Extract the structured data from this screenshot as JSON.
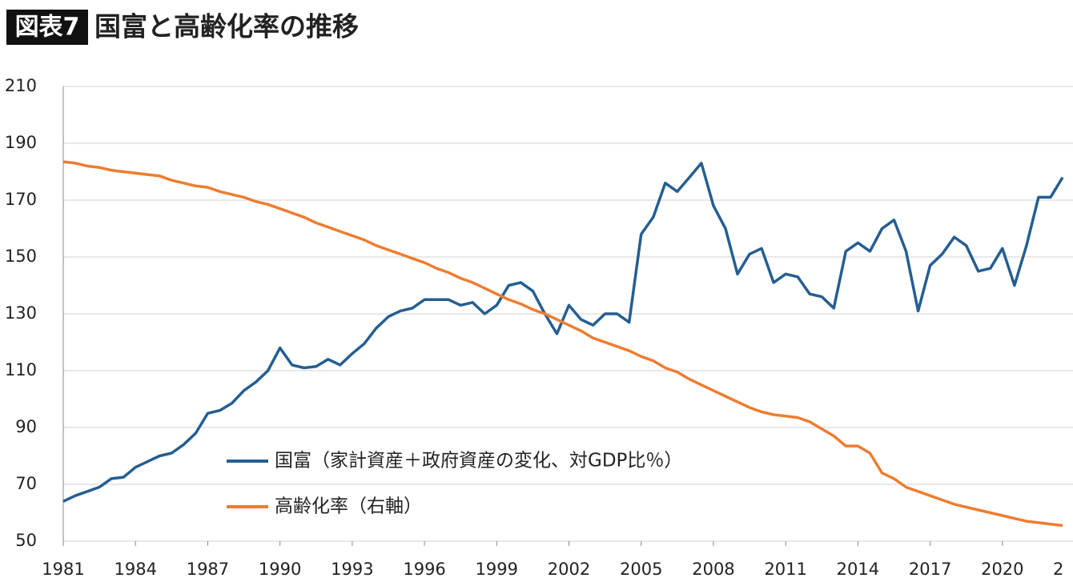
{
  "chart_data": {
    "type": "line",
    "figure_label": "図表7",
    "title": "国富と高齢化率の推移",
    "x": [
      1981,
      1981.5,
      1982,
      1982.5,
      1983,
      1983.5,
      1984,
      1984.5,
      1985,
      1985.5,
      1986,
      1986.5,
      1987,
      1987.5,
      1988,
      1988.5,
      1989,
      1989.5,
      1990,
      1990.5,
      1991,
      1991.5,
      1992,
      1992.5,
      1993,
      1993.5,
      1994,
      1994.5,
      1995,
      1995.5,
      1996,
      1996.5,
      1997,
      1997.5,
      1998,
      1998.5,
      1999,
      1999.5,
      2000,
      2000.5,
      2001,
      2001.5,
      2002,
      2002.5,
      2003,
      2003.5,
      2004,
      2004.5,
      2005,
      2005.5,
      2006,
      2006.5,
      2007,
      2007.5,
      2008,
      2008.5,
      2009,
      2009.5,
      2010,
      2010.5,
      2011,
      2011.5,
      2012,
      2012.5,
      2013,
      2013.5,
      2014,
      2014.5,
      2015,
      2015.5,
      2016,
      2016.5,
      2017,
      2017.5,
      2018,
      2018.5,
      2019,
      2019.5,
      2020,
      2020.5,
      2021,
      2021.5,
      2022,
      2022.5
    ],
    "series": [
      {
        "name": "国富（家計資産＋政府資産の変化、対GDP比％）",
        "color": "#255e91",
        "values": [
          64,
          66,
          67.5,
          69,
          72,
          72.5,
          76,
          78,
          80,
          81,
          84,
          88,
          95,
          96,
          98.5,
          103,
          106,
          110,
          118,
          112,
          111,
          111.5,
          114,
          112,
          116,
          119.5,
          125,
          129,
          131,
          132,
          135,
          135,
          135,
          133,
          134,
          130,
          133,
          140,
          141,
          138,
          130,
          123,
          133,
          128,
          126,
          130,
          130,
          127,
          158,
          164,
          176,
          173,
          178,
          183,
          168,
          160,
          144,
          151,
          153,
          141,
          144,
          143,
          137,
          136,
          132,
          152,
          155,
          152,
          160,
          163,
          152,
          131,
          147,
          151,
          157,
          154,
          145,
          146,
          153,
          140,
          154,
          171,
          171,
          178
        ]
      },
      {
        "name": "高齢化率（右軸）",
        "color": "#ed7d31",
        "values": [
          183.5,
          183,
          182,
          181.5,
          180.5,
          180,
          179.5,
          179,
          178.5,
          177,
          176,
          175,
          174.5,
          173,
          172,
          171,
          169.5,
          168.5,
          167,
          165.5,
          164,
          162,
          160.5,
          159,
          157.5,
          156,
          154,
          152.5,
          151,
          149.5,
          148,
          146,
          144.5,
          142.5,
          141,
          139,
          137,
          135,
          133.5,
          131.5,
          130,
          128,
          126,
          124,
          121.5,
          120,
          118.5,
          117,
          115,
          113.5,
          111,
          109.5,
          107,
          105,
          103,
          101,
          99,
          97,
          95.5,
          94.5,
          94,
          93.5,
          92,
          89.5,
          87,
          83.5,
          83.5,
          81,
          74,
          72,
          69,
          67.5,
          66,
          64.5,
          63,
          62,
          61,
          60,
          59,
          58,
          57,
          56.5,
          56,
          55.5
        ]
      }
    ],
    "xlim": [
      1981,
      2022.5
    ],
    "xticks": [
      1981,
      1984,
      1987,
      1990,
      1993,
      1996,
      1999,
      2002,
      2005,
      2008,
      2011,
      2014,
      2017,
      2020,
      {
        "value": 2023,
        "label": "2"
      }
    ],
    "ylim": [
      50,
      210
    ],
    "yticks": [
      50,
      70,
      90,
      110,
      130,
      150,
      170,
      190,
      210
    ],
    "grid": true
  }
}
